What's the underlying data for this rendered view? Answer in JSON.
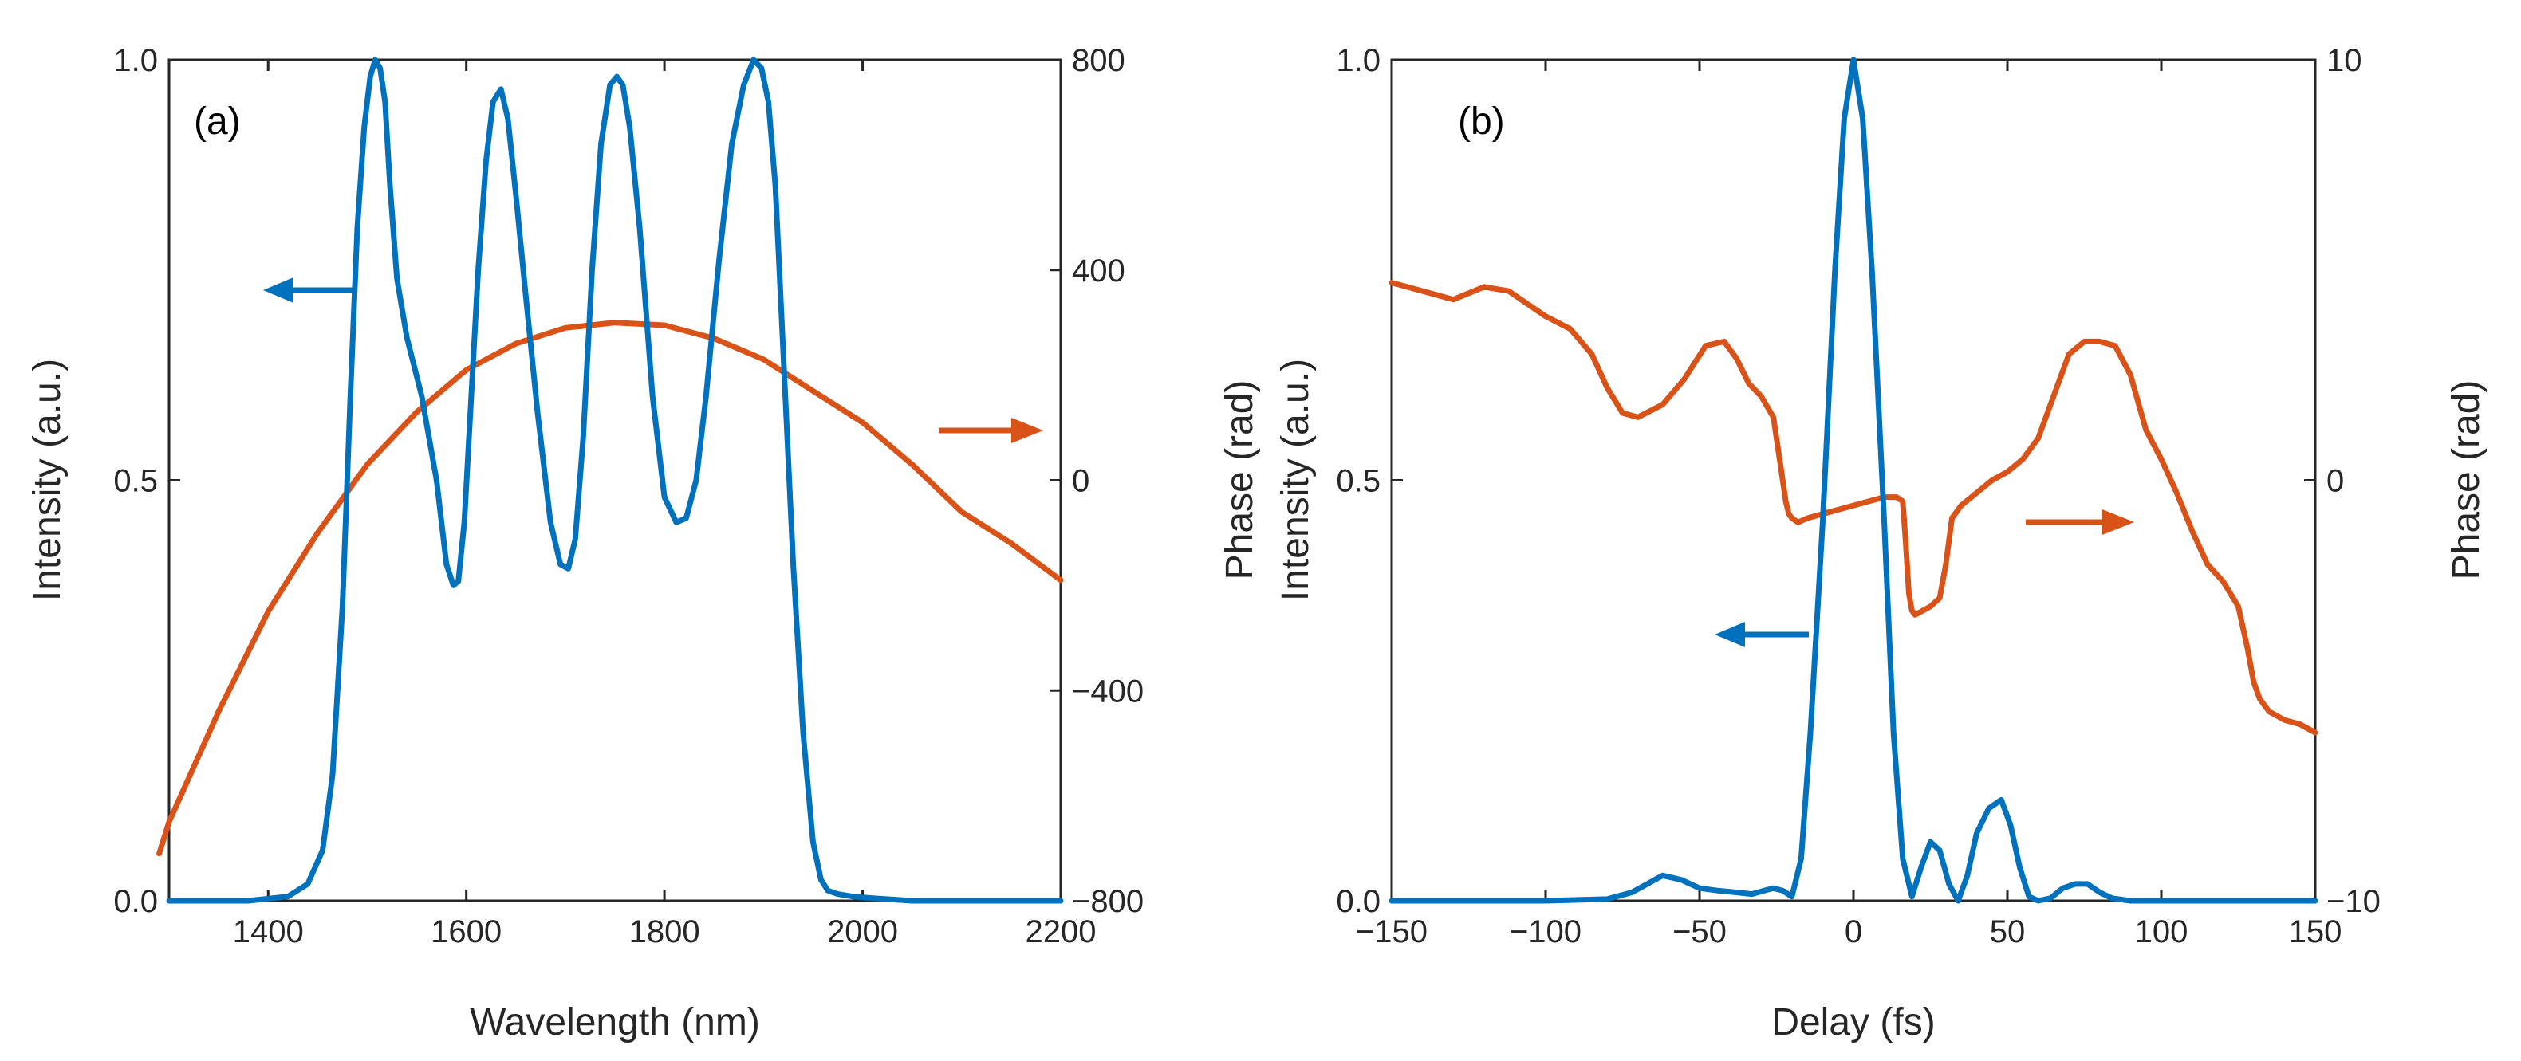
{
  "chart_data": [
    {
      "id": "a",
      "type": "line",
      "panel_label": "(a)",
      "xlabel": "Wavelength (nm)",
      "ylabel_left": "Intensity (a.u.)",
      "ylabel_right": "Phase (rad)",
      "xlim": [
        1300,
        2200
      ],
      "ylim_left": [
        0,
        1
      ],
      "ylim_right": [
        -800,
        800
      ],
      "xticks": [
        1400,
        1600,
        1800,
        2000,
        2200
      ],
      "xtick_labels": [
        "1400",
        "1600",
        "1800",
        "2000",
        "2200"
      ],
      "yticks_left": [
        0,
        0.5,
        1
      ],
      "ytick_labels_left": [
        "0.0",
        "0.5",
        "1.0"
      ],
      "yticks_right": [
        -800,
        -400,
        0,
        400,
        800
      ],
      "ytick_labels_right": [
        "−800",
        "−400",
        "0",
        "400",
        "800"
      ],
      "series": [
        {
          "name": "Intensity",
          "axis": "left",
          "color": "#0072BD",
          "x": [
            1300,
            1380,
            1420,
            1440,
            1455,
            1465,
            1475,
            1483,
            1490,
            1497,
            1503,
            1508,
            1513,
            1518,
            1523,
            1530,
            1540,
            1555,
            1570,
            1580,
            1587,
            1592,
            1598,
            1605,
            1612,
            1620,
            1627,
            1635,
            1642,
            1650,
            1660,
            1672,
            1685,
            1695,
            1703,
            1710,
            1718,
            1727,
            1736,
            1745,
            1752,
            1758,
            1765,
            1775,
            1788,
            1800,
            1812,
            1822,
            1832,
            1842,
            1855,
            1868,
            1880,
            1890,
            1898,
            1905,
            1912,
            1920,
            1930,
            1940,
            1950,
            1958,
            1965,
            1975,
            1990,
            2010,
            2050,
            2100,
            2200
          ],
          "y": [
            0.0,
            0.0,
            0.005,
            0.02,
            0.06,
            0.15,
            0.35,
            0.6,
            0.8,
            0.92,
            0.98,
            1.0,
            0.99,
            0.95,
            0.85,
            0.74,
            0.67,
            0.6,
            0.5,
            0.4,
            0.375,
            0.38,
            0.45,
            0.6,
            0.75,
            0.88,
            0.95,
            0.965,
            0.93,
            0.84,
            0.72,
            0.58,
            0.45,
            0.4,
            0.395,
            0.43,
            0.55,
            0.75,
            0.9,
            0.97,
            0.98,
            0.97,
            0.92,
            0.8,
            0.6,
            0.48,
            0.45,
            0.455,
            0.5,
            0.6,
            0.76,
            0.9,
            0.97,
            1.0,
            0.99,
            0.95,
            0.85,
            0.65,
            0.4,
            0.2,
            0.07,
            0.025,
            0.012,
            0.008,
            0.005,
            0.003,
            0.0,
            0.0,
            0.0
          ]
        },
        {
          "name": "Phase",
          "axis": "right",
          "color": "#D95319",
          "x": [
            1290,
            1300,
            1350,
            1400,
            1450,
            1500,
            1550,
            1600,
            1650,
            1700,
            1750,
            1800,
            1850,
            1900,
            1950,
            2000,
            2050,
            2100,
            2150,
            2200
          ],
          "y": [
            -710,
            -650,
            -440,
            -250,
            -100,
            30,
            130,
            210,
            260,
            290,
            300,
            295,
            270,
            230,
            170,
            110,
            30,
            -60,
            -120,
            -190
          ]
        }
      ],
      "annotations": [
        {
          "text": "arrow pointing left",
          "color": "#0072BD",
          "refers_to": "Intensity"
        },
        {
          "text": "arrow pointing right",
          "color": "#D95319",
          "refers_to": "Phase"
        }
      ]
    },
    {
      "id": "b",
      "type": "line",
      "panel_label": "(b)",
      "xlabel": "Delay (fs)",
      "ylabel_left": "Intensity (a.u.)",
      "ylabel_right": "Phase (rad)",
      "xlim": [
        -150,
        150
      ],
      "ylim_left": [
        0,
        1
      ],
      "ylim_right": [
        -10,
        10
      ],
      "xticks": [
        -150,
        -100,
        -50,
        0,
        50,
        100,
        150
      ],
      "xtick_labels": [
        "−150",
        "−100",
        "−50",
        "0",
        "50",
        "100",
        "150"
      ],
      "yticks_left": [
        0,
        0.5,
        1
      ],
      "ytick_labels_left": [
        "0.0",
        "0.5",
        "1.0"
      ],
      "yticks_right": [
        -10,
        0,
        10
      ],
      "ytick_labels_right": [
        "−10",
        "0",
        "10"
      ],
      "series": [
        {
          "name": "Intensity",
          "axis": "left",
          "color": "#0072BD",
          "x": [
            -150,
            -100,
            -80,
            -72,
            -67,
            -62,
            -56,
            -50,
            -44,
            -38,
            -33,
            -29,
            -26,
            -23,
            -20,
            -17,
            -14,
            -10,
            -6,
            -3,
            0,
            3,
            6,
            10,
            13,
            16,
            19,
            22,
            25,
            28,
            31,
            34,
            37,
            40,
            44,
            48,
            51,
            54,
            57,
            60,
            64,
            68,
            72,
            76,
            80,
            84,
            90,
            100,
            150
          ],
          "y": [
            0.0,
            0.0,
            0.002,
            0.01,
            0.02,
            0.03,
            0.025,
            0.015,
            0.012,
            0.01,
            0.008,
            0.012,
            0.015,
            0.012,
            0.005,
            0.05,
            0.2,
            0.45,
            0.75,
            0.93,
            1.0,
            0.93,
            0.75,
            0.45,
            0.2,
            0.05,
            0.005,
            0.04,
            0.07,
            0.06,
            0.02,
            0.0,
            0.03,
            0.08,
            0.11,
            0.12,
            0.09,
            0.04,
            0.005,
            0.0,
            0.003,
            0.015,
            0.02,
            0.02,
            0.01,
            0.003,
            0.0,
            0.0,
            0.0
          ]
        },
        {
          "name": "Phase",
          "axis": "right",
          "color": "#D95319",
          "x": [
            -150,
            -140,
            -130,
            -120,
            -112,
            -100,
            -92,
            -85,
            -80,
            -75,
            -70,
            -62,
            -55,
            -48,
            -42,
            -38,
            -34,
            -30,
            -26,
            -24,
            -22,
            -21,
            -20,
            -18,
            -15,
            -10,
            -5,
            0,
            5,
            10,
            14,
            16,
            17,
            18,
            19,
            20,
            25,
            28,
            30,
            32,
            35,
            40,
            45,
            50,
            55,
            60,
            65,
            70,
            75,
            80,
            85,
            90,
            95,
            100,
            105,
            110,
            115,
            120,
            125,
            128,
            130,
            132,
            135,
            140,
            145,
            150
          ],
          "y": [
            4.7,
            4.5,
            4.3,
            4.6,
            4.5,
            3.9,
            3.6,
            3.0,
            2.2,
            1.6,
            1.5,
            1.8,
            2.4,
            3.2,
            3.3,
            2.9,
            2.3,
            2.0,
            1.5,
            0.5,
            -0.5,
            -0.8,
            -0.9,
            -1.0,
            -0.9,
            -0.8,
            -0.7,
            -0.6,
            -0.5,
            -0.4,
            -0.4,
            -0.5,
            -1.5,
            -2.7,
            -3.1,
            -3.2,
            -3.0,
            -2.8,
            -2.0,
            -0.9,
            -0.6,
            -0.3,
            0.0,
            0.2,
            0.5,
            1.0,
            2.0,
            3.0,
            3.3,
            3.3,
            3.2,
            2.5,
            1.2,
            0.5,
            -0.3,
            -1.2,
            -2.0,
            -2.4,
            -3.0,
            -4.0,
            -4.8,
            -5.2,
            -5.5,
            -5.7,
            -5.8,
            -6.0
          ]
        }
      ],
      "annotations": [
        {
          "text": "arrow pointing left",
          "color": "#0072BD",
          "refers_to": "Intensity"
        },
        {
          "text": "arrow pointing right",
          "color": "#D95319",
          "refers_to": "Phase"
        }
      ]
    }
  ]
}
